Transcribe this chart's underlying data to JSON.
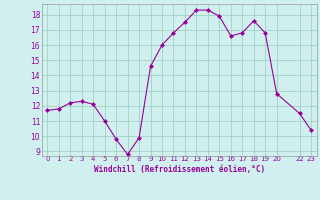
{
  "x": [
    0,
    1,
    2,
    3,
    4,
    5,
    6,
    7,
    8,
    9,
    10,
    11,
    12,
    13,
    14,
    15,
    16,
    17,
    18,
    19,
    20,
    22,
    23
  ],
  "y": [
    11.7,
    11.8,
    12.2,
    12.3,
    12.1,
    11.0,
    9.8,
    8.8,
    9.9,
    14.6,
    16.0,
    16.8,
    17.5,
    18.3,
    18.3,
    17.9,
    16.6,
    16.8,
    17.6,
    16.8,
    12.8,
    11.5,
    10.4
  ],
  "line_color": "#990099",
  "marker": "D",
  "marker_size": 2,
  "background_color": "#cff0ee",
  "grid_color": "#99ccbb",
  "xlabel": "Windchill (Refroidissement éolien,°C)",
  "xlabel_color": "#990099",
  "tick_color": "#990099",
  "ylim_min": 8.7,
  "ylim_max": 18.7,
  "yticks": [
    9,
    10,
    11,
    12,
    13,
    14,
    15,
    16,
    17,
    18
  ],
  "xtick_positions": [
    0,
    1,
    2,
    3,
    4,
    5,
    6,
    7,
    8,
    9,
    10,
    11,
    12,
    13,
    14,
    15,
    16,
    17,
    18,
    19,
    20,
    22,
    23
  ],
  "xtick_labels": [
    "0",
    "1",
    "2",
    "3",
    "4",
    "5",
    "6",
    "7",
    "8",
    "9",
    "10",
    "11",
    "12",
    "13",
    "14",
    "15",
    "16",
    "17",
    "18",
    "19",
    "20",
    "22",
    "23"
  ],
  "xlim_min": -0.5,
  "xlim_max": 23.5,
  "figsize": [
    3.2,
    2.0
  ],
  "dpi": 100
}
